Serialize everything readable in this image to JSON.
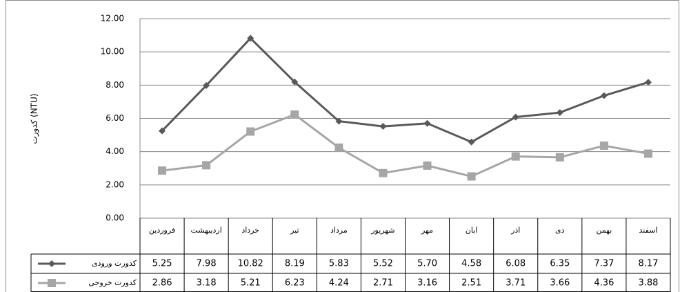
{
  "chart_data": {
    "type": "line",
    "y_label": "کدورت (NTU)",
    "categories": [
      "فروردین",
      "اردیبهشت",
      "خرداد",
      "تیر",
      "مرداد",
      "شهریور",
      "مهر",
      "ابان",
      "اذر",
      "دی",
      "بهمن",
      "اسفند"
    ],
    "series": [
      {
        "name": "کدورت ورودی",
        "color": "#595959",
        "marker": "diamond",
        "values": [
          5.25,
          7.98,
          10.82,
          8.19,
          5.83,
          5.52,
          5.7,
          4.58,
          6.08,
          6.35,
          7.37,
          8.17
        ],
        "value_labels": [
          "5.25",
          "7.98",
          "10.82",
          "8.19",
          "5.83",
          "5.52",
          "5.70",
          "4.58",
          "6.08",
          "6.35",
          "7.37",
          "8.17"
        ]
      },
      {
        "name": "کدورت خروجی",
        "color": "#a6a6a6",
        "marker": "square",
        "values": [
          2.86,
          3.18,
          5.21,
          6.23,
          4.24,
          2.71,
          3.16,
          2.51,
          3.71,
          3.66,
          4.36,
          3.88
        ],
        "value_labels": [
          "2.86",
          "3.18",
          "5.21",
          "6.23",
          "4.24",
          "2.71",
          "3.16",
          "2.51",
          "3.71",
          "3.66",
          "4.36",
          "3.88"
        ]
      }
    ],
    "ylim": [
      0,
      12
    ],
    "yticks": [
      {
        "value": 0,
        "label": "0.00"
      },
      {
        "value": 2,
        "label": "2.00"
      },
      {
        "value": 4,
        "label": "4.00"
      },
      {
        "value": 6,
        "label": "6.00"
      },
      {
        "value": 8,
        "label": "8.00"
      },
      {
        "value": 10,
        "label": "10.00"
      },
      {
        "value": 12,
        "label": "12.00"
      }
    ],
    "grid": true
  }
}
